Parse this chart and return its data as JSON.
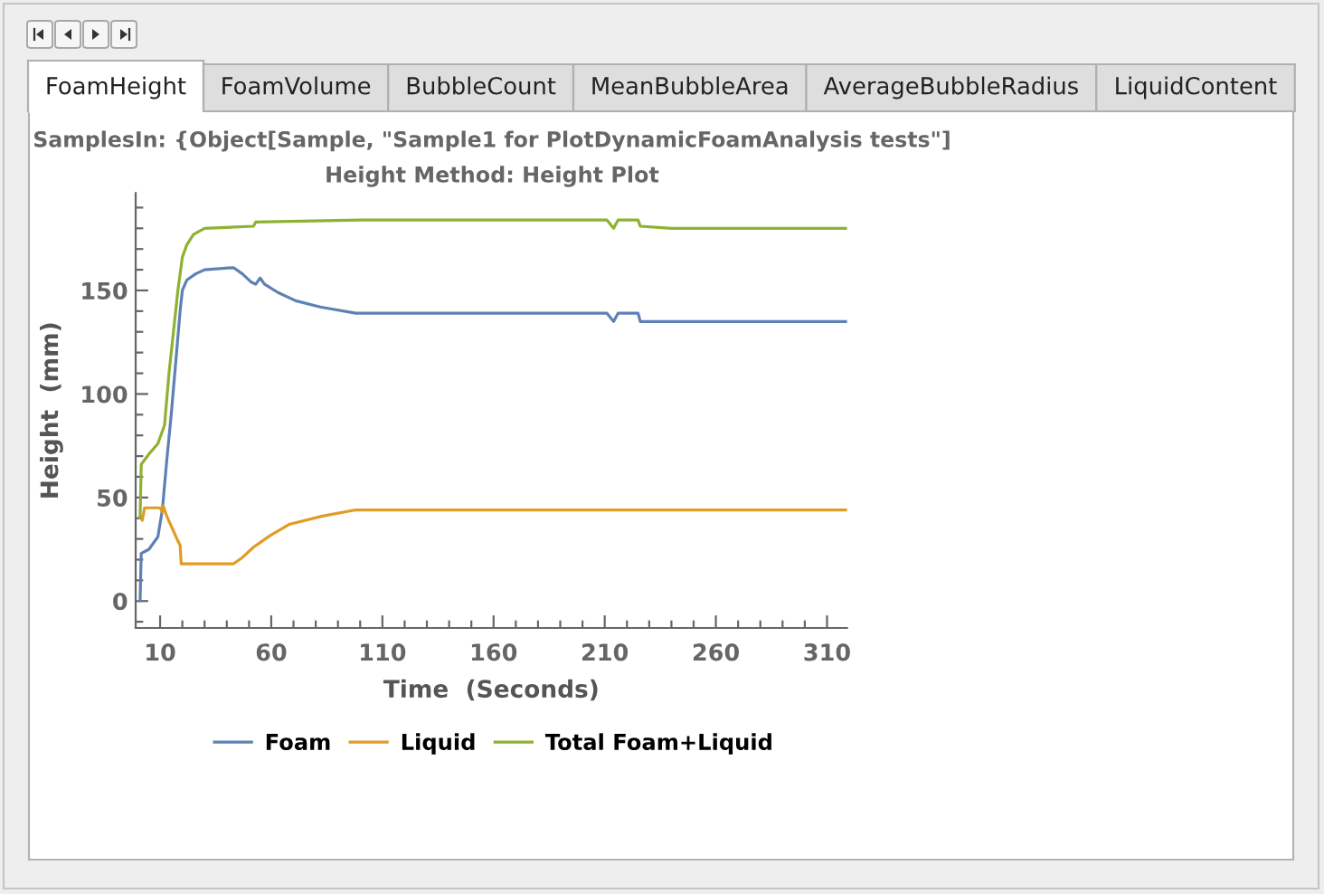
{
  "chart_data": {
    "type": "line",
    "title": "SamplesIn: {Object[Sample, \"Sample1 for PlotDynamicFoamAnalysis tests\"]",
    "subtitle": "Height Method: Height Plot",
    "xlabel": "Time  (Seconds)",
    "ylabel": "Height  (mm)",
    "annotations": [
      "FoamHeight",
      "FoamVolume",
      "BubbleCount",
      "MeanBubbleArea",
      "AverageBubbleRadius",
      "LiquidContent"
    ],
    "series": [
      {
        "name": "Foam",
        "color": "#5e81b5",
        "x": [
          1,
          1.5,
          5,
          9,
          11,
          13,
          15,
          17,
          19,
          20,
          22,
          26,
          30,
          43,
          47,
          51,
          53,
          55,
          57,
          63,
          71,
          82,
          98,
          166,
          211,
          214,
          216,
          225,
          226,
          319
        ],
        "values": [
          0,
          23,
          25,
          31,
          44,
          68,
          90,
          115,
          140,
          150,
          155,
          158,
          160,
          161,
          158,
          154,
          153,
          156,
          153,
          149,
          145,
          142,
          139,
          139,
          139,
          135,
          139,
          139,
          135,
          135
        ]
      },
      {
        "name": "Liquid",
        "color": "#e19c24",
        "x": [
          1,
          2,
          3,
          10,
          11,
          11.5,
          12,
          13,
          15.5,
          18,
          19,
          19.5,
          43,
          47,
          52,
          56,
          60,
          68,
          83,
          98,
          319
        ],
        "values": [
          41,
          39,
          45,
          45,
          43,
          46,
          44,
          41,
          35,
          29,
          27,
          18,
          18,
          21,
          26,
          29,
          32,
          37,
          41,
          44,
          44
        ]
      },
      {
        "name": "Total Foam+Liquid",
        "color": "#8fb131",
        "x": [
          1,
          1.5,
          5,
          9,
          12,
          14,
          16,
          18,
          20,
          22,
          25,
          30,
          52,
          53,
          100,
          211,
          214,
          216,
          225,
          226,
          240,
          319
        ],
        "values": [
          40,
          66,
          71,
          76,
          85,
          110,
          130,
          150,
          166,
          172,
          177,
          180,
          181,
          183,
          184,
          184,
          180,
          184,
          184,
          181,
          180,
          180
        ]
      }
    ],
    "xlim": [
      -1,
      319
    ],
    "ylim": [
      -13,
      197
    ],
    "xticks": [
      10,
      {
        "value": 20,
        "label": null
      },
      {
        "value": 30,
        "label": null
      },
      {
        "value": 40,
        "label": null
      },
      {
        "value": 50,
        "label": null
      },
      60,
      {
        "value": 70,
        "label": null
      },
      {
        "value": 80,
        "label": null
      },
      {
        "value": 90,
        "label": null
      },
      {
        "value": 100,
        "label": null
      },
      110,
      {
        "value": 120,
        "label": null
      },
      {
        "value": 130,
        "label": null
      },
      {
        "value": 140,
        "label": null
      },
      {
        "value": 150,
        "label": null
      },
      160,
      {
        "value": 170,
        "label": null
      },
      {
        "value": 180,
        "label": null
      },
      {
        "value": 190,
        "label": null
      },
      {
        "value": 200,
        "label": null
      },
      210,
      {
        "value": 220,
        "label": null
      },
      {
        "value": 230,
        "label": null
      },
      {
        "value": 240,
        "label": null
      },
      {
        "value": 250,
        "label": null
      },
      260,
      {
        "value": 270,
        "label": null
      },
      {
        "value": 280,
        "label": null
      },
      {
        "value": 290,
        "label": null
      },
      {
        "value": 300,
        "label": null
      },
      310
    ],
    "yticks": [
      {
        "value": -10,
        "label": null
      },
      0,
      {
        "value": 10,
        "label": null
      },
      {
        "value": 20,
        "label": null
      },
      {
        "value": 30,
        "label": null
      },
      {
        "value": 40,
        "label": null
      },
      50,
      {
        "value": 60,
        "label": null
      },
      {
        "value": 70,
        "label": null
      },
      {
        "value": 80,
        "label": null
      },
      {
        "value": 90,
        "label": null
      },
      100,
      {
        "value": 110,
        "label": null
      },
      {
        "value": 120,
        "label": null
      },
      {
        "value": 130,
        "label": null
      },
      {
        "value": 140,
        "label": null
      },
      150,
      {
        "value": 160,
        "label": null
      },
      {
        "value": 170,
        "label": null
      },
      {
        "value": 180,
        "label": null
      },
      {
        "value": 190,
        "label": null
      }
    ],
    "legend": "bottom",
    "line_style": "solid"
  }
}
